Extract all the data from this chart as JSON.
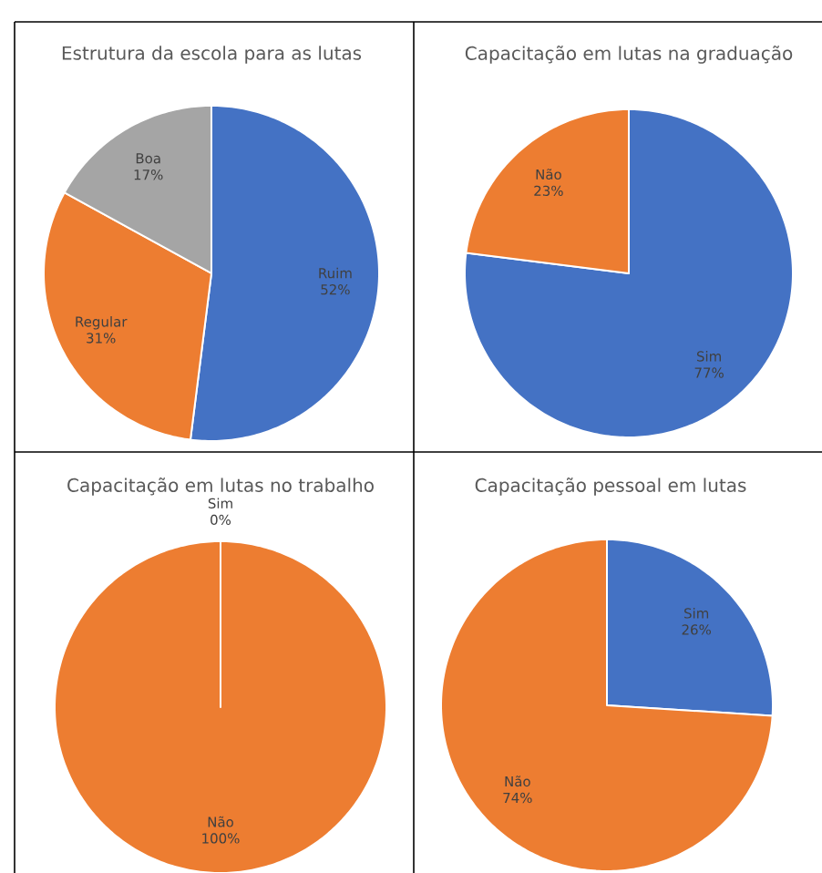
{
  "chart_data": [
    {
      "type": "pie",
      "title": "Estrutura da escola para as lutas",
      "categories": [
        "Ruim",
        "Regular",
        "Boa"
      ],
      "values": [
        52,
        31,
        17
      ],
      "colors": [
        "#4472c4",
        "#ed7d31",
        "#a5a5a5"
      ],
      "value_labels": [
        "52%",
        "31%",
        "17%"
      ]
    },
    {
      "type": "pie",
      "title": "Capacitação em lutas na graduação",
      "categories": [
        "Sim",
        "Não"
      ],
      "values": [
        77,
        23
      ],
      "colors": [
        "#4472c4",
        "#ed7d31"
      ],
      "value_labels": [
        "77%",
        "23%"
      ]
    },
    {
      "type": "pie",
      "title": "Capacitação em lutas no trabalho",
      "categories": [
        "Sim",
        "Não"
      ],
      "values": [
        0,
        100
      ],
      "colors": [
        "#4472c4",
        "#ed7d31"
      ],
      "value_labels": [
        "0%",
        "100%"
      ]
    },
    {
      "type": "pie",
      "title": "Capacitação pessoal em lutas",
      "categories": [
        "Sim",
        "Não"
      ],
      "values": [
        26,
        74
      ],
      "colors": [
        "#4472c4",
        "#ed7d31"
      ],
      "value_labels": [
        "26%",
        "74%"
      ]
    }
  ]
}
